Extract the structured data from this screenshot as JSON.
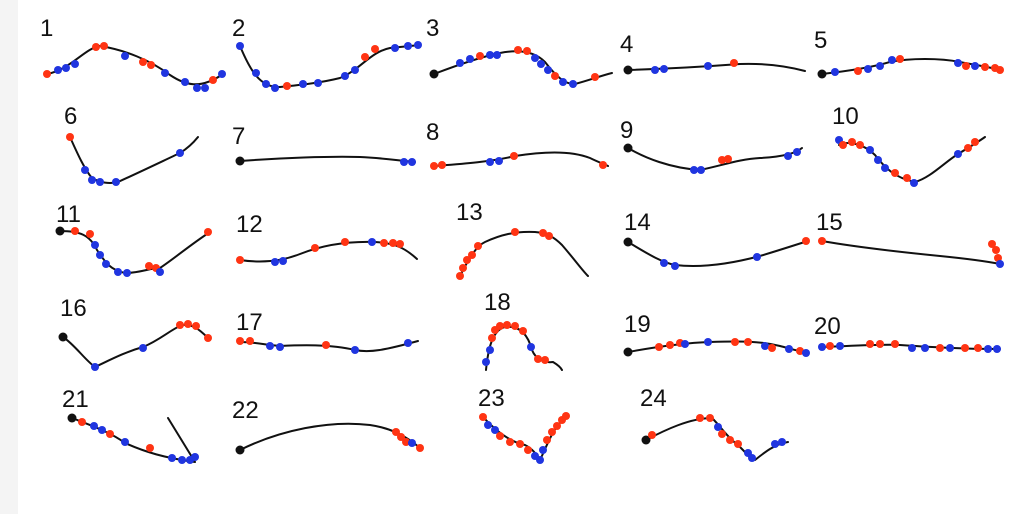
{
  "colors": {
    "line": "#111111",
    "start": "#111111",
    "blue": "#2035e0",
    "red": "#ff3413",
    "sidebar": "#f4f4f4"
  },
  "trials": [
    {
      "label": "1"
    },
    {
      "label": "2"
    },
    {
      "label": "3"
    },
    {
      "label": "4"
    },
    {
      "label": "5"
    },
    {
      "label": "6"
    },
    {
      "label": "7"
    },
    {
      "label": "8"
    },
    {
      "label": "9"
    },
    {
      "label": "10"
    },
    {
      "label": "11"
    },
    {
      "label": "12"
    },
    {
      "label": "13"
    },
    {
      "label": "14"
    },
    {
      "label": "15"
    },
    {
      "label": "16"
    },
    {
      "label": "17"
    },
    {
      "label": "18"
    },
    {
      "label": "19"
    },
    {
      "label": "20"
    },
    {
      "label": "21"
    },
    {
      "label": "22"
    },
    {
      "label": "23"
    },
    {
      "label": "24"
    }
  ]
}
